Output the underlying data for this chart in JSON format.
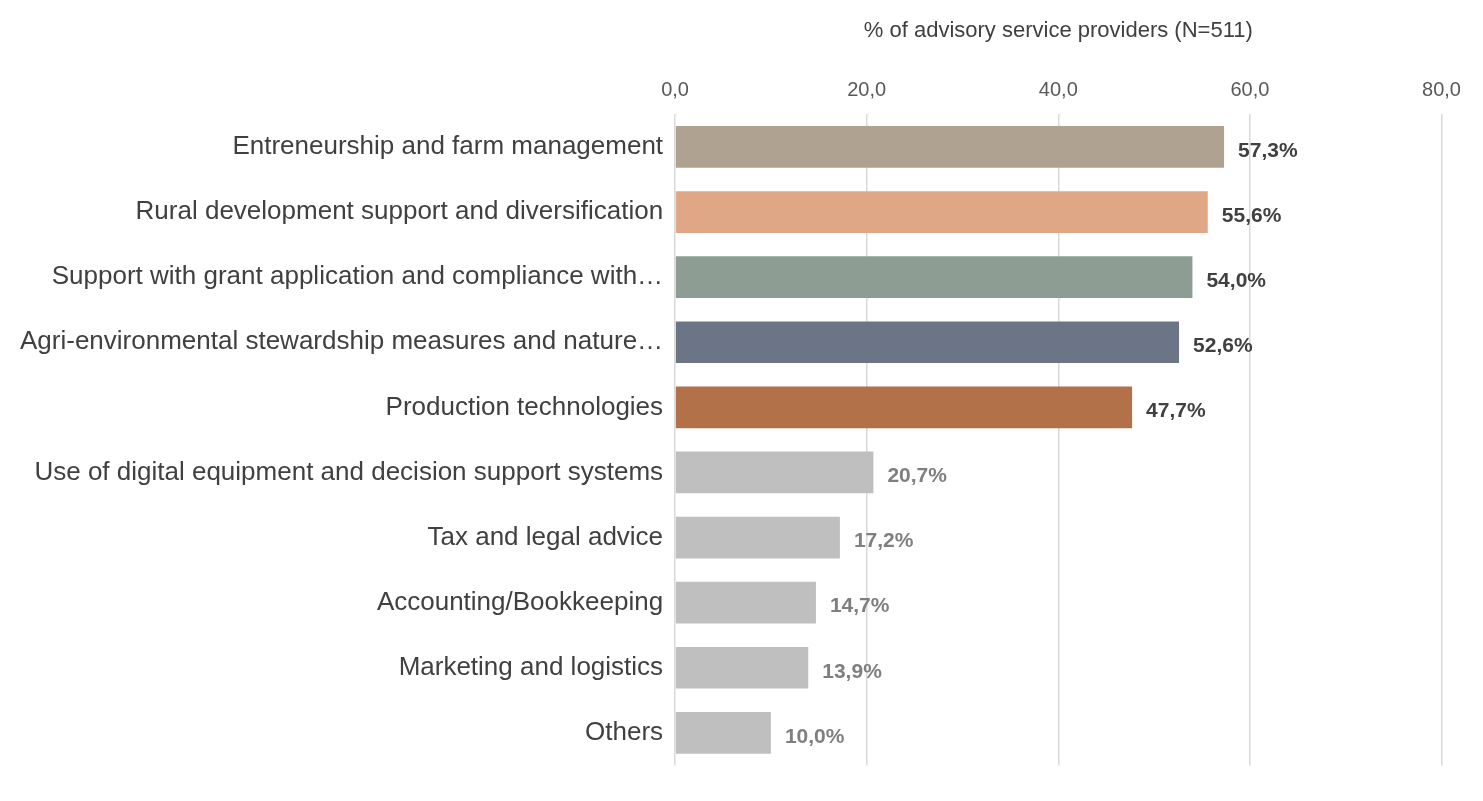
{
  "chart_data": {
    "type": "bar",
    "orientation": "horizontal",
    "xlabel": "% of advisory service providers (N=511)",
    "categories": [
      "Entreneurship and farm management",
      "Rural development support and diversification",
      "Support with grant application and compliance with…",
      "Agri-environmental stewardship measures and nature…",
      "Production technologies",
      "Use of digital equipment and decision support systems",
      "Tax and legal advice",
      "Accounting/Bookkeeping",
      "Marketing and logistics",
      "Others"
    ],
    "values": [
      57.3,
      55.6,
      54.0,
      52.6,
      47.7,
      20.7,
      17.2,
      14.7,
      13.9,
      10.0
    ],
    "colors": [
      "#b0a290",
      "#dfa785",
      "#8e9d94",
      "#6b7585",
      "#b3714a",
      "#bfbfbf",
      "#bfbfbf",
      "#bfbfbf",
      "#bfbfbf",
      "#bfbfbf"
    ],
    "value_labels": [
      "57,3%",
      "55,6%",
      "54,0%",
      "52,6%",
      "47,7%",
      "20,7%",
      "17,2%",
      "14,7%",
      "13,9%",
      "10,0%"
    ],
    "xlim": [
      0,
      80
    ],
    "xticks": [
      {
        "value": 0,
        "label": "0,0"
      },
      {
        "value": 20,
        "label": "20,0"
      },
      {
        "value": 40,
        "label": "40,0"
      },
      {
        "value": 60,
        "label": "60,0"
      },
      {
        "value": 80,
        "label": "80,0"
      }
    ],
    "grid": "x",
    "legend": false
  }
}
